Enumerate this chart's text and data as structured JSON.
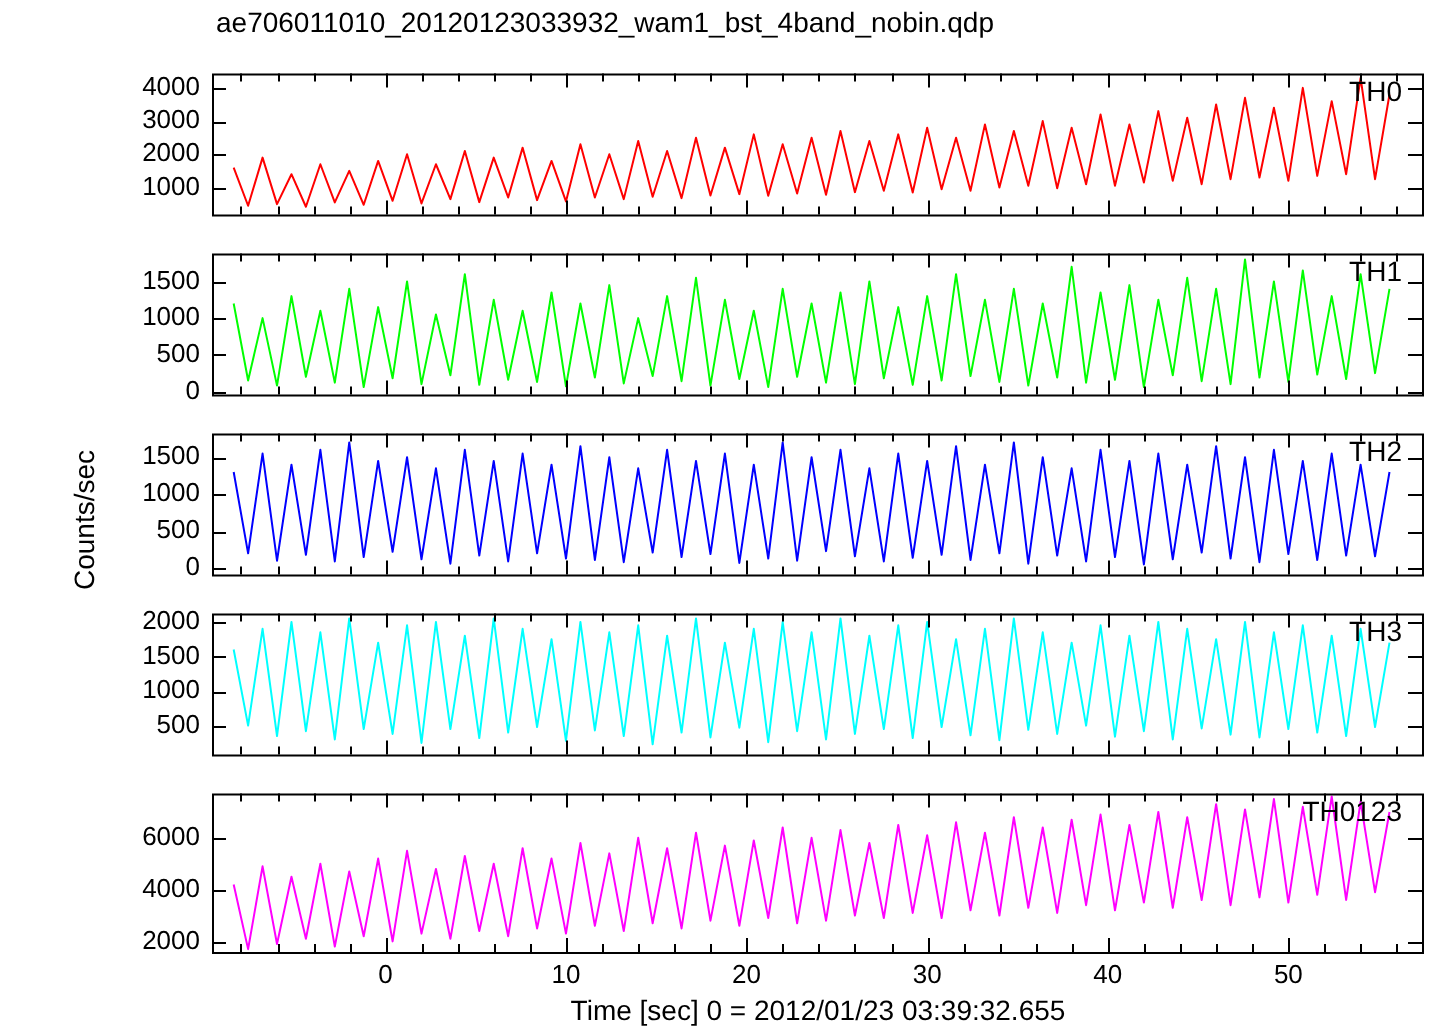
{
  "chart_data": [
    {
      "type": "line",
      "title": "ae706011010_20120123033932_wam1_bst_4band_nobin.qdp",
      "grid": false,
      "legend": false,
      "marker": "none",
      "line_style": "solid",
      "tick_labels": "y",
      "xlim": [
        -9.6,
        57.4
      ],
      "xticks": [
        {
          "value": -8,
          "label": null
        },
        {
          "value": -6,
          "label": null
        },
        {
          "value": -4,
          "label": null
        },
        {
          "value": -2,
          "label": null
        },
        0,
        {
          "value": 2,
          "label": null
        },
        {
          "value": 4,
          "label": null
        },
        {
          "value": 6,
          "label": null
        },
        {
          "value": 8,
          "label": null
        },
        10,
        {
          "value": 12,
          "label": null
        },
        {
          "value": 14,
          "label": null
        },
        {
          "value": 16,
          "label": null
        },
        {
          "value": 18,
          "label": null
        },
        20,
        {
          "value": 22,
          "label": null
        },
        {
          "value": 24,
          "label": null
        },
        {
          "value": 26,
          "label": null
        },
        {
          "value": 28,
          "label": null
        },
        30,
        {
          "value": 32,
          "label": null
        },
        {
          "value": 34,
          "label": null
        },
        {
          "value": 36,
          "label": null
        },
        {
          "value": 38,
          "label": null
        },
        40,
        {
          "value": 42,
          "label": null
        },
        {
          "value": 44,
          "label": null
        },
        {
          "value": 46,
          "label": null
        },
        {
          "value": 48,
          "label": null
        },
        50,
        {
          "value": 52,
          "label": null
        },
        {
          "value": 54,
          "label": null
        },
        {
          "value": 56,
          "label": null
        }
      ],
      "ylim": [
        190,
        4430
      ],
      "yticks": [
        1000,
        2000,
        3000,
        4000
      ],
      "x": [
        -8.4,
        -7.6,
        -6.8,
        -6.0,
        -5.2,
        -4.4,
        -3.6,
        -2.8,
        -2.0,
        -1.2,
        -0.4,
        0.4,
        1.2,
        2.0,
        2.8,
        3.6,
        4.4,
        5.2,
        6.0,
        6.8,
        7.6,
        8.4,
        9.2,
        10.0,
        10.8,
        11.6,
        12.4,
        13.2,
        14.0,
        14.8,
        15.6,
        16.4,
        17.2,
        18.0,
        18.8,
        19.6,
        20.4,
        21.2,
        22.0,
        22.8,
        23.6,
        24.4,
        25.2,
        26.0,
        26.8,
        27.6,
        28.4,
        29.2,
        30.0,
        30.8,
        31.6,
        32.4,
        33.2,
        34.0,
        34.8,
        35.6,
        36.4,
        37.2,
        38.0,
        38.8,
        39.6,
        40.4,
        41.2,
        42.0,
        42.8,
        43.6,
        44.4,
        45.2,
        46.0,
        46.8,
        47.6,
        48.4,
        49.2,
        50.0,
        50.8,
        51.6,
        52.4,
        53.2,
        54.0,
        54.8,
        55.6
      ],
      "series": [
        {
          "name": "TH0",
          "color": "#ff0000",
          "values": [
            1600,
            450,
            1900,
            500,
            1400,
            420,
            1700,
            550,
            1500,
            480,
            1800,
            600,
            2000,
            520,
            1700,
            650,
            2100,
            560,
            1900,
            700,
            2200,
            620,
            1800,
            580,
            2300,
            700,
            2000,
            650,
            2400,
            720,
            2100,
            680,
            2500,
            760,
            2200,
            800,
            2600,
            750,
            2300,
            820,
            2500,
            780,
            2700,
            860,
            2400,
            900,
            2600,
            850,
            2800,
            950,
            2500,
            900,
            2900,
            1000,
            2700,
            1050,
            3000,
            980,
            2800,
            1100,
            3200,
            1050,
            2900,
            1150,
            3300,
            1200,
            3100,
            1100,
            3500,
            1250,
            3700,
            1300,
            3400,
            1200,
            4000,
            1350,
            3600,
            1400,
            4300,
            1250,
            3800
          ]
        }
      ]
    },
    {
      "type": "line",
      "grid": false,
      "legend": false,
      "marker": "none",
      "line_style": "solid",
      "tick_labels": "y",
      "xlim": [
        -9.6,
        57.4
      ],
      "xticks": [
        {
          "value": -8,
          "label": null
        },
        {
          "value": -6,
          "label": null
        },
        {
          "value": -4,
          "label": null
        },
        {
          "value": -2,
          "label": null
        },
        0,
        {
          "value": 2,
          "label": null
        },
        {
          "value": 4,
          "label": null
        },
        {
          "value": 6,
          "label": null
        },
        {
          "value": 8,
          "label": null
        },
        10,
        {
          "value": 12,
          "label": null
        },
        {
          "value": 14,
          "label": null
        },
        {
          "value": 16,
          "label": null
        },
        {
          "value": 18,
          "label": null
        },
        20,
        {
          "value": 22,
          "label": null
        },
        {
          "value": 24,
          "label": null
        },
        {
          "value": 26,
          "label": null
        },
        {
          "value": 28,
          "label": null
        },
        30,
        {
          "value": 32,
          "label": null
        },
        {
          "value": 34,
          "label": null
        },
        {
          "value": 36,
          "label": null
        },
        {
          "value": 38,
          "label": null
        },
        40,
        {
          "value": 42,
          "label": null
        },
        {
          "value": 44,
          "label": null
        },
        {
          "value": 46,
          "label": null
        },
        {
          "value": 48,
          "label": null
        },
        50,
        {
          "value": 52,
          "label": null
        },
        {
          "value": 54,
          "label": null
        },
        {
          "value": 56,
          "label": null
        }
      ],
      "ylim": [
        -40,
        1880
      ],
      "yticks": [
        0,
        500,
        1000,
        1500
      ],
      "x": [
        -8.4,
        -7.6,
        -6.8,
        -6.0,
        -5.2,
        -4.4,
        -3.6,
        -2.8,
        -2.0,
        -1.2,
        -0.4,
        0.4,
        1.2,
        2.0,
        2.8,
        3.6,
        4.4,
        5.2,
        6.0,
        6.8,
        7.6,
        8.4,
        9.2,
        10.0,
        10.8,
        11.6,
        12.4,
        13.2,
        14.0,
        14.8,
        15.6,
        16.4,
        17.2,
        18.0,
        18.8,
        19.6,
        20.4,
        21.2,
        22.0,
        22.8,
        23.6,
        24.4,
        25.2,
        26.0,
        26.8,
        27.6,
        28.4,
        29.2,
        30.0,
        30.8,
        31.6,
        32.4,
        33.2,
        34.0,
        34.8,
        35.6,
        36.4,
        37.2,
        38.0,
        38.8,
        39.6,
        40.4,
        41.2,
        42.0,
        42.8,
        43.6,
        44.4,
        45.2,
        46.0,
        46.8,
        47.6,
        48.4,
        49.2,
        50.0,
        50.8,
        51.6,
        52.4,
        53.2,
        54.0,
        54.8,
        55.6
      ],
      "series": [
        {
          "name": "TH1",
          "color": "#00ff00",
          "values": [
            1200,
            150,
            1000,
            80,
            1300,
            200,
            1100,
            120,
            1400,
            60,
            1150,
            180,
            1500,
            100,
            1050,
            220,
            1600,
            90,
            1250,
            160,
            1100,
            130,
            1350,
            70,
            1200,
            190,
            1450,
            110,
            1000,
            210,
            1300,
            140,
            1550,
            80,
            1250,
            170,
            1100,
            60,
            1400,
            200,
            1200,
            120,
            1350,
            100,
            1500,
            180,
            1150,
            90,
            1300,
            150,
            1600,
            210,
            1250,
            130,
            1400,
            80,
            1200,
            190,
            1700,
            120,
            1350,
            160,
            1450,
            60,
            1250,
            220,
            1550,
            140,
            1400,
            100,
            1800,
            190,
            1500,
            130,
            1650,
            230,
            1300,
            170,
            1600,
            250,
            1400
          ]
        }
      ]
    },
    {
      "type": "line",
      "ylabel": "Counts/sec",
      "grid": false,
      "legend": false,
      "marker": "none",
      "line_style": "solid",
      "tick_labels": "y",
      "xlim": [
        -9.6,
        57.4
      ],
      "xticks": [
        {
          "value": -8,
          "label": null
        },
        {
          "value": -6,
          "label": null
        },
        {
          "value": -4,
          "label": null
        },
        {
          "value": -2,
          "label": null
        },
        0,
        {
          "value": 2,
          "label": null
        },
        {
          "value": 4,
          "label": null
        },
        {
          "value": 6,
          "label": null
        },
        {
          "value": 8,
          "label": null
        },
        10,
        {
          "value": 12,
          "label": null
        },
        {
          "value": 14,
          "label": null
        },
        {
          "value": 16,
          "label": null
        },
        {
          "value": 18,
          "label": null
        },
        20,
        {
          "value": 22,
          "label": null
        },
        {
          "value": 24,
          "label": null
        },
        {
          "value": 26,
          "label": null
        },
        {
          "value": 28,
          "label": null
        },
        30,
        {
          "value": 32,
          "label": null
        },
        {
          "value": 34,
          "label": null
        },
        {
          "value": 36,
          "label": null
        },
        {
          "value": 38,
          "label": null
        },
        40,
        {
          "value": 42,
          "label": null
        },
        {
          "value": 44,
          "label": null
        },
        {
          "value": 46,
          "label": null
        },
        {
          "value": 48,
          "label": null
        },
        50,
        {
          "value": 52,
          "label": null
        },
        {
          "value": 54,
          "label": null
        },
        {
          "value": 56,
          "label": null
        }
      ],
      "ylim": [
        -85,
        1820
      ],
      "yticks": [
        0,
        500,
        1000,
        1500
      ],
      "x": [
        -8.4,
        -7.6,
        -6.8,
        -6.0,
        -5.2,
        -4.4,
        -3.6,
        -2.8,
        -2.0,
        -1.2,
        -0.4,
        0.4,
        1.2,
        2.0,
        2.8,
        3.6,
        4.4,
        5.2,
        6.0,
        6.8,
        7.6,
        8.4,
        9.2,
        10.0,
        10.8,
        11.6,
        12.4,
        13.2,
        14.0,
        14.8,
        15.6,
        16.4,
        17.2,
        18.0,
        18.8,
        19.6,
        20.4,
        21.2,
        22.0,
        22.8,
        23.6,
        24.4,
        25.2,
        26.0,
        26.8,
        27.6,
        28.4,
        29.2,
        30.0,
        30.8,
        31.6,
        32.4,
        33.2,
        34.0,
        34.8,
        35.6,
        36.4,
        37.2,
        38.0,
        38.8,
        39.6,
        40.4,
        41.2,
        42.0,
        42.8,
        43.6,
        44.4,
        45.2,
        46.0,
        46.8,
        47.6,
        48.4,
        49.2,
        50.0,
        50.8,
        51.6,
        52.4,
        53.2,
        54.0,
        54.8,
        55.6
      ],
      "series": [
        {
          "name": "TH2",
          "color": "#0000ff",
          "values": [
            1300,
            200,
            1550,
            100,
            1400,
            180,
            1600,
            90,
            1700,
            150,
            1450,
            220,
            1500,
            120,
            1350,
            60,
            1600,
            170,
            1450,
            90,
            1550,
            200,
            1400,
            130,
            1650,
            110,
            1500,
            80,
            1350,
            210,
            1600,
            150,
            1450,
            190,
            1550,
            70,
            1400,
            130,
            1700,
            100,
            1500,
            230,
            1600,
            160,
            1350,
            90,
            1550,
            140,
            1450,
            180,
            1650,
            110,
            1400,
            200,
            1700,
            60,
            1500,
            170,
            1350,
            90,
            1600,
            150,
            1450,
            50,
            1550,
            120,
            1400,
            210,
            1650,
            130,
            1500,
            80,
            1600,
            190,
            1450,
            110,
            1550,
            170,
            1400,
            160,
            1300
          ]
        }
      ]
    },
    {
      "type": "line",
      "grid": false,
      "legend": false,
      "marker": "none",
      "line_style": "solid",
      "tick_labels": "y",
      "xlim": [
        -9.6,
        57.4
      ],
      "xticks": [
        {
          "value": -8,
          "label": null
        },
        {
          "value": -6,
          "label": null
        },
        {
          "value": -4,
          "label": null
        },
        {
          "value": -2,
          "label": null
        },
        0,
        {
          "value": 2,
          "label": null
        },
        {
          "value": 4,
          "label": null
        },
        {
          "value": 6,
          "label": null
        },
        {
          "value": 8,
          "label": null
        },
        10,
        {
          "value": 12,
          "label": null
        },
        {
          "value": 14,
          "label": null
        },
        {
          "value": 16,
          "label": null
        },
        {
          "value": 18,
          "label": null
        },
        20,
        {
          "value": 22,
          "label": null
        },
        {
          "value": 24,
          "label": null
        },
        {
          "value": 26,
          "label": null
        },
        {
          "value": 28,
          "label": null
        },
        30,
        {
          "value": 32,
          "label": null
        },
        {
          "value": 34,
          "label": null
        },
        {
          "value": 36,
          "label": null
        },
        {
          "value": 38,
          "label": null
        },
        40,
        {
          "value": 42,
          "label": null
        },
        {
          "value": 44,
          "label": null
        },
        {
          "value": 46,
          "label": null
        },
        {
          "value": 48,
          "label": null
        },
        50,
        {
          "value": 52,
          "label": null
        },
        {
          "value": 54,
          "label": null
        },
        {
          "value": 56,
          "label": null
        }
      ],
      "ylim": [
        84,
        2120
      ],
      "yticks": [
        500,
        1000,
        1500,
        2000
      ],
      "x": [
        -8.4,
        -7.6,
        -6.8,
        -6.0,
        -5.2,
        -4.4,
        -3.6,
        -2.8,
        -2.0,
        -1.2,
        -0.4,
        0.4,
        1.2,
        2.0,
        2.8,
        3.6,
        4.4,
        5.2,
        6.0,
        6.8,
        7.6,
        8.4,
        9.2,
        10.0,
        10.8,
        11.6,
        12.4,
        13.2,
        14.0,
        14.8,
        15.6,
        16.4,
        17.2,
        18.0,
        18.8,
        19.6,
        20.4,
        21.2,
        22.0,
        22.8,
        23.6,
        24.4,
        25.2,
        26.0,
        26.8,
        27.6,
        28.4,
        29.2,
        30.0,
        30.8,
        31.6,
        32.4,
        33.2,
        34.0,
        34.8,
        35.6,
        36.4,
        37.2,
        38.0,
        38.8,
        39.6,
        40.4,
        41.2,
        42.0,
        42.8,
        43.6,
        44.4,
        45.2,
        46.0,
        46.8,
        47.6,
        48.4,
        49.2,
        50.0,
        50.8,
        51.6,
        52.4,
        53.2,
        54.0,
        54.8,
        55.6
      ],
      "series": [
        {
          "name": "TH3",
          "color": "#00ffff",
          "values": [
            1600,
            500,
            1900,
            350,
            2000,
            420,
            1850,
            300,
            2050,
            450,
            1700,
            380,
            1950,
            250,
            2000,
            450,
            1800,
            320,
            2050,
            400,
            1900,
            480,
            1750,
            280,
            2000,
            430,
            1850,
            350,
            1950,
            230,
            1800,
            400,
            2050,
            330,
            1700,
            470,
            1900,
            260,
            2000,
            420,
            1850,
            300,
            2050,
            380,
            1800,
            450,
            1950,
            320,
            2000,
            480,
            1750,
            360,
            1900,
            290,
            2050,
            440,
            1850,
            380,
            1700,
            500,
            1950,
            340,
            1800,
            420,
            2000,
            300,
            1900,
            460,
            1750,
            370,
            2000,
            330,
            1850,
            450,
            1950,
            400,
            1800,
            350,
            1900,
            480,
            1700
          ]
        }
      ]
    },
    {
      "type": "line",
      "xlabel": "Time [sec] 0 = 2012/01/23 03:39:32.655",
      "grid": false,
      "legend": false,
      "marker": "none",
      "line_style": "solid",
      "xlim": [
        -9.6,
        57.4
      ],
      "xticks": [
        {
          "value": -8,
          "label": null
        },
        {
          "value": -6,
          "label": null
        },
        {
          "value": -4,
          "label": null
        },
        {
          "value": -2,
          "label": null
        },
        0,
        {
          "value": 2,
          "label": null
        },
        {
          "value": 4,
          "label": null
        },
        {
          "value": 6,
          "label": null
        },
        {
          "value": 8,
          "label": null
        },
        10,
        {
          "value": 12,
          "label": null
        },
        {
          "value": 14,
          "label": null
        },
        {
          "value": 16,
          "label": null
        },
        {
          "value": 18,
          "label": null
        },
        20,
        {
          "value": 22,
          "label": null
        },
        {
          "value": 24,
          "label": null
        },
        {
          "value": 26,
          "label": null
        },
        {
          "value": 28,
          "label": null
        },
        30,
        {
          "value": 32,
          "label": null
        },
        {
          "value": 34,
          "label": null
        },
        {
          "value": 36,
          "label": null
        },
        {
          "value": 38,
          "label": null
        },
        40,
        {
          "value": 42,
          "label": null
        },
        {
          "value": 44,
          "label": null
        },
        {
          "value": 46,
          "label": null
        },
        {
          "value": 48,
          "label": null
        },
        50,
        {
          "value": 52,
          "label": null
        },
        {
          "value": 54,
          "label": null
        },
        {
          "value": 56,
          "label": null
        }
      ],
      "ylim": [
        1590,
        7710
      ],
      "yticks": [
        2000,
        4000,
        6000
      ],
      "x": [
        -8.4,
        -7.6,
        -6.8,
        -6.0,
        -5.2,
        -4.4,
        -3.6,
        -2.8,
        -2.0,
        -1.2,
        -0.4,
        0.4,
        1.2,
        2.0,
        2.8,
        3.6,
        4.4,
        5.2,
        6.0,
        6.8,
        7.6,
        8.4,
        9.2,
        10.0,
        10.8,
        11.6,
        12.4,
        13.2,
        14.0,
        14.8,
        15.6,
        16.4,
        17.2,
        18.0,
        18.8,
        19.6,
        20.4,
        21.2,
        22.0,
        22.8,
        23.6,
        24.4,
        25.2,
        26.0,
        26.8,
        27.6,
        28.4,
        29.2,
        30.0,
        30.8,
        31.6,
        32.4,
        33.2,
        34.0,
        34.8,
        35.6,
        36.4,
        37.2,
        38.0,
        38.8,
        39.6,
        40.4,
        41.2,
        42.0,
        42.8,
        43.6,
        44.4,
        45.2,
        46.0,
        46.8,
        47.6,
        48.4,
        49.2,
        50.0,
        50.8,
        51.6,
        52.4,
        53.2,
        54.0,
        54.8,
        55.6
      ],
      "series": [
        {
          "name": "TH0123",
          "color": "#ff00ff",
          "values": [
            4200,
            1700,
            4900,
            1900,
            4500,
            2100,
            5000,
            1800,
            4700,
            2200,
            5200,
            2000,
            5500,
            2300,
            4800,
            2100,
            5300,
            2400,
            5000,
            2200,
            5600,
            2500,
            5200,
            2300,
            5800,
            2600,
            5400,
            2400,
            6000,
            2700,
            5600,
            2500,
            6200,
            2800,
            5700,
            2600,
            5900,
            2900,
            6400,
            2700,
            6000,
            2800,
            6300,
            3000,
            5800,
            2900,
            6500,
            3100,
            6100,
            2900,
            6600,
            3200,
            6200,
            3000,
            6800,
            3300,
            6400,
            3100,
            6700,
            3400,
            6900,
            3200,
            6500,
            3500,
            7000,
            3300,
            6800,
            3600,
            7300,
            3400,
            7100,
            3700,
            7500,
            3500,
            7200,
            3800,
            7600,
            3600,
            7400,
            3900,
            7000
          ]
        }
      ]
    }
  ]
}
